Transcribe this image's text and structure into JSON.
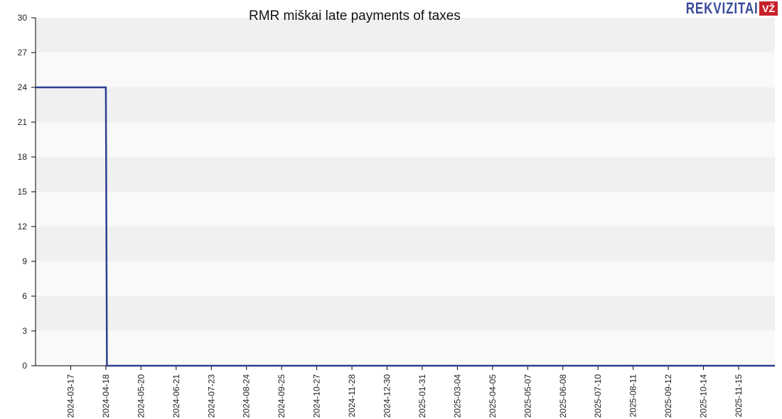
{
  "chart_data": {
    "type": "line",
    "step": true,
    "title": "RMR miškai late payments of taxes",
    "xlabel": "",
    "ylabel": "",
    "ylim": [
      0,
      30
    ],
    "yticks": [
      0,
      3,
      6,
      9,
      12,
      15,
      18,
      21,
      24,
      27,
      30
    ],
    "xlim": [
      "2024-02-14",
      "2025-12-18"
    ],
    "xticks": [
      "2024-03-17",
      "2024-04-18",
      "2024-05-20",
      "2024-06-21",
      "2024-07-23",
      "2024-08-24",
      "2024-09-25",
      "2024-10-27",
      "2024-11-28",
      "2024-12-30",
      "2025-01-31",
      "2025-03-04",
      "2025-04-05",
      "2025-05-07",
      "2025-06-08",
      "2025-07-10",
      "2025-08-11",
      "2025-09-12",
      "2025-10-14",
      "2025-11-15"
    ],
    "series": [
      {
        "color": "#2e3f8f",
        "x": [
          "2024-02-14",
          "2024-04-18",
          "2024-04-19",
          "2025-12-18"
        ],
        "y": [
          24,
          24,
          0,
          0
        ]
      }
    ],
    "grid": "horizontal bands",
    "band_colors": [
      "#f9f9f9",
      "#f0f0f0"
    ]
  },
  "logo": {
    "text": "REKVIZITAI",
    "badge": "VŽ",
    "text_color": "#3a4b9a",
    "badge_color": "#c8202a"
  }
}
